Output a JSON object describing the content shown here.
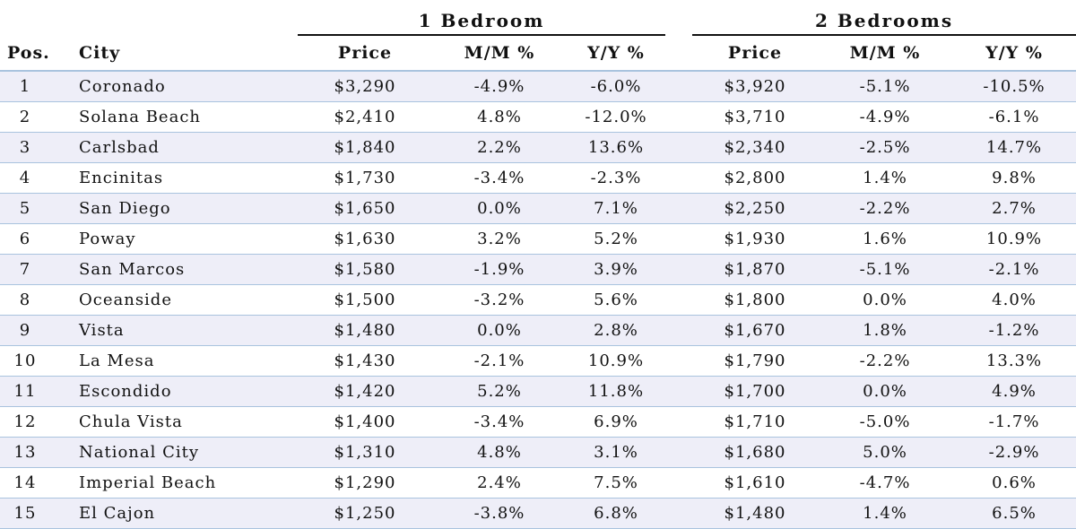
{
  "groups": {
    "one_bedroom": "1 Bedroom",
    "two_bedrooms": "2 Bedrooms"
  },
  "columns": {
    "pos": "Pos.",
    "city": "City",
    "price_1br": "Price",
    "mm_1br": "M/M %",
    "yy_1br": "Y/Y %",
    "price_2br": "Price",
    "mm_2br": "M/M %",
    "yy_2br": "Y/Y %"
  },
  "rows": [
    {
      "pos": "1",
      "city": "Coronado",
      "p1": "$3,290",
      "m1": "-4.9%",
      "y1": "-6.0%",
      "p2": "$3,920",
      "m2": "-5.1%",
      "y2": "-10.5%"
    },
    {
      "pos": "2",
      "city": "Solana Beach",
      "p1": "$2,410",
      "m1": "4.8%",
      "y1": "-12.0%",
      "p2": "$3,710",
      "m2": "-4.9%",
      "y2": "-6.1%"
    },
    {
      "pos": "3",
      "city": "Carlsbad",
      "p1": "$1,840",
      "m1": "2.2%",
      "y1": "13.6%",
      "p2": "$2,340",
      "m2": "-2.5%",
      "y2": "14.7%"
    },
    {
      "pos": "4",
      "city": "Encinitas",
      "p1": "$1,730",
      "m1": "-3.4%",
      "y1": "-2.3%",
      "p2": "$2,800",
      "m2": "1.4%",
      "y2": "9.8%"
    },
    {
      "pos": "5",
      "city": "San Diego",
      "p1": "$1,650",
      "m1": "0.0%",
      "y1": "7.1%",
      "p2": "$2,250",
      "m2": "-2.2%",
      "y2": "2.7%"
    },
    {
      "pos": "6",
      "city": "Poway",
      "p1": "$1,630",
      "m1": "3.2%",
      "y1": "5.2%",
      "p2": "$1,930",
      "m2": "1.6%",
      "y2": "10.9%"
    },
    {
      "pos": "7",
      "city": "San Marcos",
      "p1": "$1,580",
      "m1": "-1.9%",
      "y1": "3.9%",
      "p2": "$1,870",
      "m2": "-5.1%",
      "y2": "-2.1%"
    },
    {
      "pos": "8",
      "city": "Oceanside",
      "p1": "$1,500",
      "m1": "-3.2%",
      "y1": "5.6%",
      "p2": "$1,800",
      "m2": "0.0%",
      "y2": "4.0%"
    },
    {
      "pos": "9",
      "city": "Vista",
      "p1": "$1,480",
      "m1": "0.0%",
      "y1": "2.8%",
      "p2": "$1,670",
      "m2": "1.8%",
      "y2": "-1.2%"
    },
    {
      "pos": "10",
      "city": "La Mesa",
      "p1": "$1,430",
      "m1": "-2.1%",
      "y1": "10.9%",
      "p2": "$1,790",
      "m2": "-2.2%",
      "y2": "13.3%"
    },
    {
      "pos": "11",
      "city": "Escondido",
      "p1": "$1,420",
      "m1": "5.2%",
      "y1": "11.8%",
      "p2": "$1,700",
      "m2": "0.0%",
      "y2": "4.9%"
    },
    {
      "pos": "12",
      "city": "Chula Vista",
      "p1": "$1,400",
      "m1": "-3.4%",
      "y1": "6.9%",
      "p2": "$1,710",
      "m2": "-5.0%",
      "y2": "-1.7%"
    },
    {
      "pos": "13",
      "city": "National City",
      "p1": "$1,310",
      "m1": "4.8%",
      "y1": "3.1%",
      "p2": "$1,680",
      "m2": "5.0%",
      "y2": "-2.9%"
    },
    {
      "pos": "14",
      "city": "Imperial Beach",
      "p1": "$1,290",
      "m1": "2.4%",
      "y1": "7.5%",
      "p2": "$1,610",
      "m2": "-4.7%",
      "y2": "0.6%"
    },
    {
      "pos": "15",
      "city": "El Cajon",
      "p1": "$1,250",
      "m1": "-3.8%",
      "y1": "6.8%",
      "p2": "$1,480",
      "m2": "1.4%",
      "y2": "6.5%"
    }
  ],
  "colors": {
    "row_band": "#eeeef8",
    "rule_blue": "#a9c3de",
    "rule_dark": "#111111"
  }
}
